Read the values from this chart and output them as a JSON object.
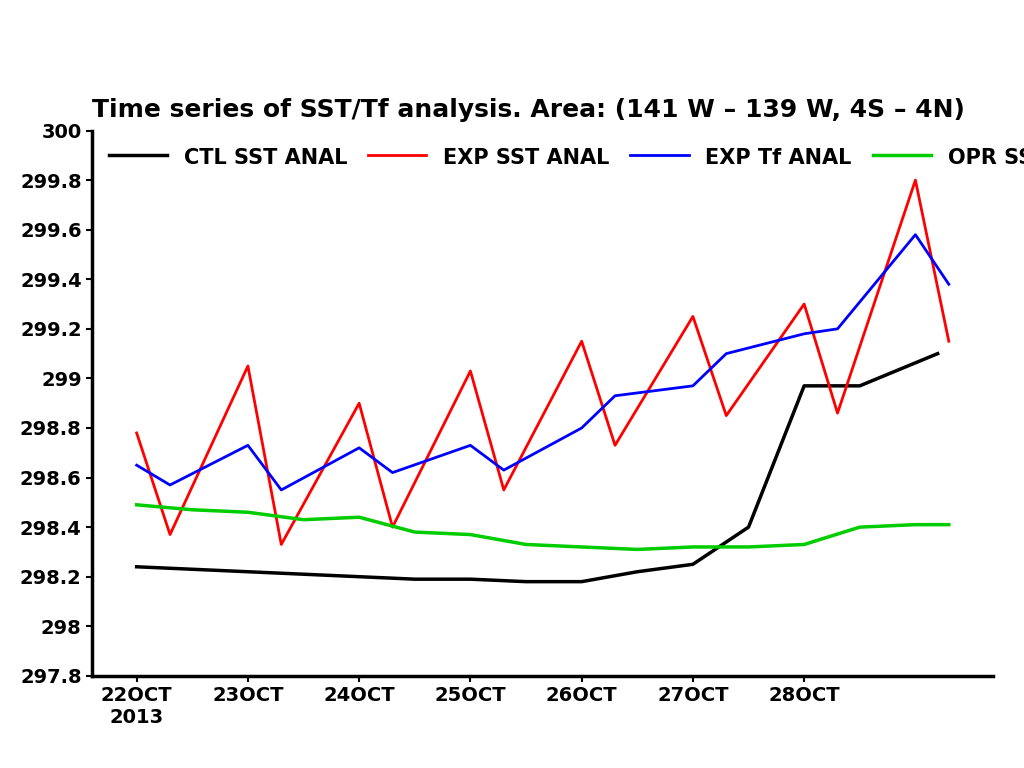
{
  "title": "Time series of SST/Tf analysis. Area: (141 W – 139 W, 4S – 4N)",
  "ylim": [
    297.8,
    300.0
  ],
  "yticks": [
    297.8,
    298.0,
    298.2,
    298.4,
    298.6,
    298.8,
    299.0,
    299.2,
    299.4,
    299.6,
    299.8,
    300.0
  ],
  "ytick_labels": [
    "297.8",
    "298",
    "298.2",
    "298.4",
    "298.6",
    "298.8",
    "299",
    "299.2",
    "299.4",
    "299.6",
    "299.8",
    "300"
  ],
  "xtick_pos": [
    22,
    23,
    24,
    25,
    26,
    27,
    28
  ],
  "xtick_labels": [
    "22OCT\n2013",
    "23OCT",
    "24OCT",
    "25OCT",
    "26OCT",
    "27OCT",
    "28OCT"
  ],
  "xlim_left": 21.6,
  "xlim_right": 29.7,
  "ctl_x": [
    22.0,
    23.0,
    24.0,
    24.5,
    25.0,
    25.5,
    26.0,
    26.5,
    27.0,
    27.5,
    28.0,
    28.5,
    29.2
  ],
  "ctl_y": [
    298.24,
    298.22,
    298.2,
    298.19,
    298.19,
    298.18,
    298.18,
    298.22,
    298.25,
    298.4,
    298.97,
    298.97,
    299.1
  ],
  "exp_sst_x": [
    22.0,
    22.3,
    23.0,
    23.3,
    24.0,
    24.3,
    25.0,
    25.3,
    26.0,
    26.3,
    27.0,
    27.3,
    28.0,
    28.3,
    29.0,
    29.3
  ],
  "exp_sst_y": [
    298.78,
    298.37,
    299.05,
    298.33,
    298.9,
    298.4,
    299.03,
    298.55,
    299.15,
    298.73,
    299.25,
    298.85,
    299.3,
    298.86,
    299.8,
    299.15
  ],
  "exp_tf_x": [
    22.0,
    22.3,
    23.0,
    23.3,
    24.0,
    24.3,
    25.0,
    25.3,
    26.0,
    26.3,
    27.0,
    27.3,
    28.0,
    28.3,
    29.0,
    29.3
  ],
  "exp_tf_y": [
    298.65,
    298.57,
    298.73,
    298.55,
    298.72,
    298.62,
    298.73,
    298.63,
    298.8,
    298.93,
    298.97,
    299.1,
    299.18,
    299.2,
    299.58,
    299.38
  ],
  "opr_sst_x": [
    22.0,
    22.5,
    23.0,
    23.5,
    24.0,
    24.5,
    25.0,
    25.5,
    26.0,
    26.5,
    27.0,
    27.5,
    28.0,
    28.5,
    29.0,
    29.3
  ],
  "opr_sst_y": [
    298.49,
    298.47,
    298.46,
    298.43,
    298.44,
    298.38,
    298.37,
    298.33,
    298.32,
    298.31,
    298.32,
    298.32,
    298.33,
    298.4,
    298.41,
    298.41
  ],
  "ctl_color": "#000000",
  "exp_sst_color": "#ff0000",
  "exp_tf_color": "#0000ff",
  "opr_sst_color": "#00cc00",
  "bg_color": "#ffffff",
  "title_fontsize": 18,
  "tick_fontsize": 14,
  "legend_fontsize": 15,
  "line_width": 2.0
}
